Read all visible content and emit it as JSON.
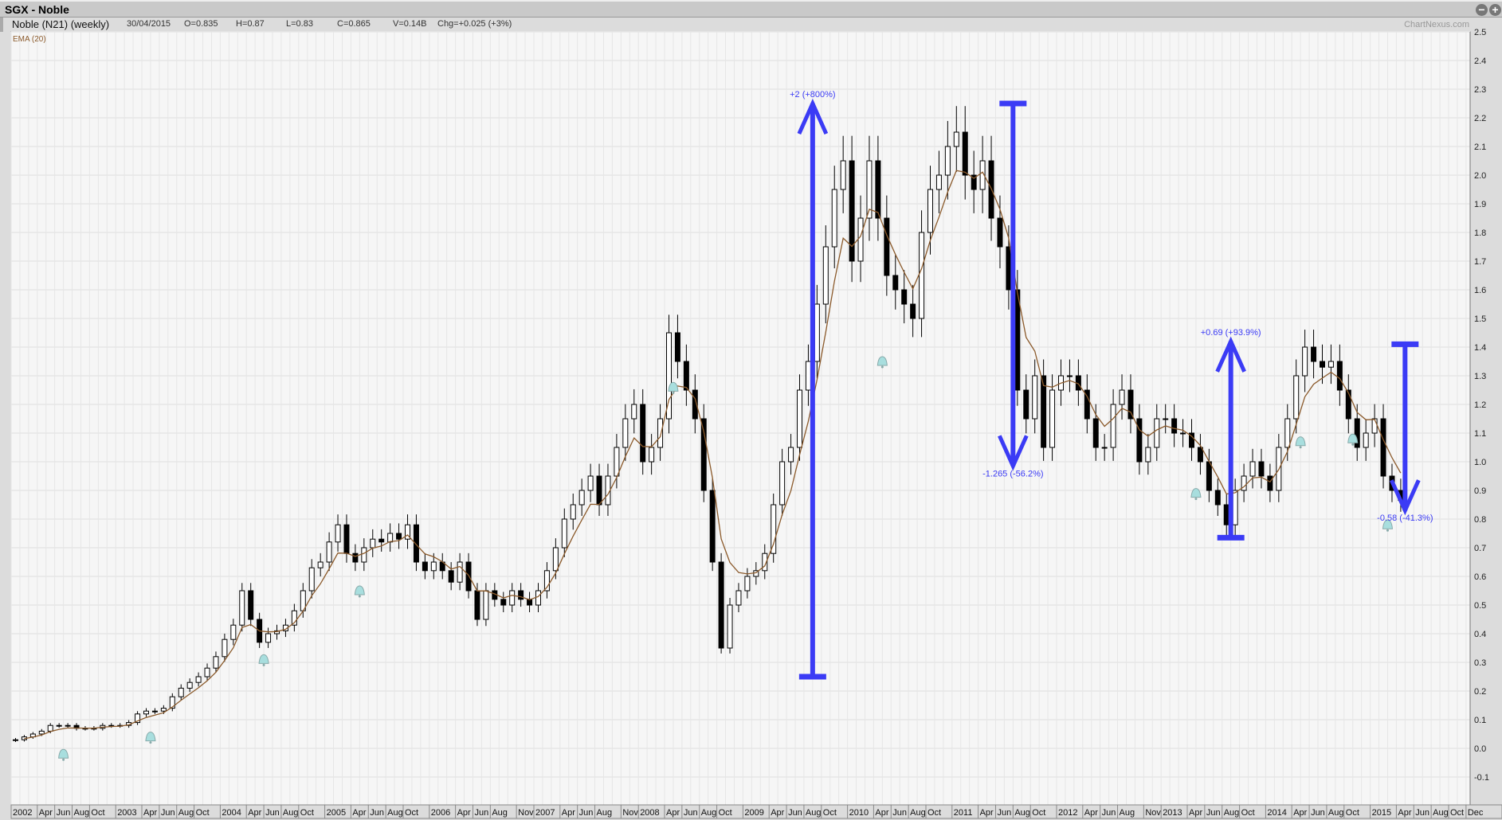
{
  "window": {
    "title": "SGX - Noble",
    "icons": [
      "zoom-out-icon",
      "zoom-in-icon",
      "options-icon"
    ]
  },
  "info": {
    "name": "Noble (N21) (weekly)",
    "date": "30/04/2015",
    "open": "O=0.835",
    "high": "H=0.87",
    "low": "L=0.83",
    "close": "C=0.865",
    "volume": "V=0.14B",
    "change": "Chg=+0.025 (+3%)",
    "brand": "ChartNexus.com"
  },
  "chart_data": {
    "type": "candlestick",
    "indicator": {
      "label": "EMA (20)",
      "color": "#8b5a2b"
    },
    "colors": {
      "up_body": "#ffffff",
      "down_body": "#000000",
      "annotation": "#3b3bf5",
      "alert": "#a8dede",
      "grid": "#e6e6e6",
      "background": "#f6f6f6"
    },
    "ylim": [
      -0.1,
      2.5
    ],
    "yticks": [
      "2.5",
      "2.4",
      "2.3",
      "2.2",
      "2.1",
      "2.0",
      "1.9",
      "1.8",
      "1.7",
      "1.6",
      "1.5",
      "1.4",
      "1.3",
      "1.2",
      "1.1",
      "1.0",
      "0.9",
      "0.8",
      "0.7",
      "0.6",
      "0.5",
      "0.4",
      "0.3",
      "0.2",
      "0.1",
      "0.0",
      "-0.1"
    ],
    "grid": true,
    "start": "2002-01",
    "monthly_close": [
      0.03,
      0.04,
      0.05,
      0.06,
      0.08,
      0.08,
      0.08,
      0.07,
      0.07,
      0.07,
      0.08,
      0.08,
      0.08,
      0.09,
      0.12,
      0.13,
      0.13,
      0.14,
      0.18,
      0.21,
      0.23,
      0.25,
      0.28,
      0.32,
      0.38,
      0.43,
      0.55,
      0.45,
      0.37,
      0.4,
      0.41,
      0.43,
      0.48,
      0.55,
      0.63,
      0.65,
      0.72,
      0.78,
      0.68,
      0.65,
      0.7,
      0.73,
      0.72,
      0.75,
      0.73,
      0.78,
      0.65,
      0.62,
      0.65,
      0.62,
      0.58,
      0.65,
      0.55,
      0.45,
      0.55,
      0.52,
      0.5,
      0.55,
      0.52,
      0.5,
      0.55,
      0.62,
      0.7,
      0.8,
      0.85,
      0.9,
      0.95,
      0.85,
      0.95,
      1.05,
      1.15,
      1.2,
      1.0,
      1.05,
      1.15,
      1.45,
      1.35,
      1.25,
      1.15,
      0.9,
      0.65,
      0.35,
      0.5,
      0.55,
      0.6,
      0.62,
      0.68,
      0.85,
      1.0,
      1.05,
      1.25,
      1.35,
      1.55,
      1.75,
      1.95,
      2.05,
      1.7,
      1.85,
      2.05,
      1.85,
      1.65,
      1.6,
      1.55,
      1.5,
      1.8,
      1.95,
      2.0,
      2.1,
      2.15,
      2.0,
      1.95,
      2.05,
      1.85,
      1.75,
      1.6,
      1.25,
      1.15,
      1.3,
      1.05,
      1.25,
      1.3,
      1.3,
      1.25,
      1.15,
      1.05,
      1.05,
      1.2,
      1.25,
      1.15,
      1.0,
      1.05,
      1.15,
      1.15,
      1.1,
      1.1,
      1.05,
      1.0,
      0.9,
      0.85,
      0.78,
      0.9,
      0.95,
      1.0,
      0.95,
      0.9,
      1.05,
      1.15,
      1.3,
      1.4,
      1.35,
      1.33,
      1.35,
      1.25,
      1.15,
      1.05,
      1.1,
      1.15,
      0.95,
      0.9,
      0.865
    ],
    "xaxis_labels": [
      [
        "2002",
        "2002-01"
      ],
      [
        "Apr",
        "2002-04"
      ],
      [
        "Jun",
        "2002-06"
      ],
      [
        "Aug",
        "2002-08"
      ],
      [
        "Oct",
        "2002-10"
      ],
      [
        "2003",
        "2003-01"
      ],
      [
        "Apr",
        "2003-04"
      ],
      [
        "Jun",
        "2003-06"
      ],
      [
        "Aug",
        "2003-08"
      ],
      [
        "Oct",
        "2003-10"
      ],
      [
        "2004",
        "2004-01"
      ],
      [
        "Apr",
        "2004-04"
      ],
      [
        "Jun",
        "2004-06"
      ],
      [
        "Aug",
        "2004-08"
      ],
      [
        "Oct",
        "2004-10"
      ],
      [
        "2005",
        "2005-01"
      ],
      [
        "Apr",
        "2005-04"
      ],
      [
        "Jun",
        "2005-06"
      ],
      [
        "Aug",
        "2005-08"
      ],
      [
        "Oct",
        "2005-10"
      ],
      [
        "2006",
        "2006-01"
      ],
      [
        "Apr",
        "2006-04"
      ],
      [
        "Jun",
        "2006-06"
      ],
      [
        "Aug",
        "2006-08"
      ],
      [
        "Nov",
        "2006-11"
      ],
      [
        "2007",
        "2007-01"
      ],
      [
        "Apr",
        "2007-04"
      ],
      [
        "Jun",
        "2007-06"
      ],
      [
        "Aug",
        "2007-08"
      ],
      [
        "Nov",
        "2007-11"
      ],
      [
        "2008",
        "2008-01"
      ],
      [
        "Apr",
        "2008-04"
      ],
      [
        "Jun",
        "2008-06"
      ],
      [
        "Aug",
        "2008-08"
      ],
      [
        "Oct",
        "2008-10"
      ],
      [
        "2009",
        "2009-01"
      ],
      [
        "Apr",
        "2009-04"
      ],
      [
        "Jun",
        "2009-06"
      ],
      [
        "Aug",
        "2009-08"
      ],
      [
        "Oct",
        "2009-10"
      ],
      [
        "2010",
        "2010-01"
      ],
      [
        "Apr",
        "2010-04"
      ],
      [
        "Jun",
        "2010-06"
      ],
      [
        "Aug",
        "2010-08"
      ],
      [
        "Oct",
        "2010-10"
      ],
      [
        "2011",
        "2011-01"
      ],
      [
        "Apr",
        "2011-04"
      ],
      [
        "Jun",
        "2011-06"
      ],
      [
        "Aug",
        "2011-08"
      ],
      [
        "Oct",
        "2011-10"
      ],
      [
        "2012",
        "2012-01"
      ],
      [
        "Apr",
        "2012-04"
      ],
      [
        "Jun",
        "2012-06"
      ],
      [
        "Aug",
        "2012-08"
      ],
      [
        "Nov",
        "2012-11"
      ],
      [
        "2013",
        "2013-01"
      ],
      [
        "Apr",
        "2013-04"
      ],
      [
        "Jun",
        "2013-06"
      ],
      [
        "Aug",
        "2013-08"
      ],
      [
        "Oct",
        "2013-10"
      ],
      [
        "2014",
        "2014-01"
      ],
      [
        "Apr",
        "2014-04"
      ],
      [
        "Jun",
        "2014-06"
      ],
      [
        "Aug",
        "2014-08"
      ],
      [
        "Oct",
        "2014-10"
      ],
      [
        "2015",
        "2015-01"
      ],
      [
        "Apr",
        "2015-04"
      ],
      [
        "Jun",
        "2015-06"
      ],
      [
        "Aug",
        "2015-08"
      ],
      [
        "Oct",
        "2015-10"
      ],
      [
        "Dec",
        "2015-12"
      ]
    ],
    "annotations": [
      {
        "label": "+2 (+800%)",
        "date": "2009-09",
        "from": 0.25,
        "to": 2.25,
        "direction": "up"
      },
      {
        "label": "-1.265 (-56.2%)",
        "date": "2011-08",
        "from": 2.25,
        "to": 0.985,
        "direction": "down"
      },
      {
        "label": "+0.69 (+93.9%)",
        "date": "2013-09",
        "from": 0.735,
        "to": 1.42,
        "direction": "up"
      },
      {
        "label": "-0.58 (-41.3%)",
        "date": "2015-05",
        "from": 1.41,
        "to": 0.83,
        "direction": "down"
      }
    ],
    "alerts": [
      {
        "date": "2002-07",
        "value": -0.02
      },
      {
        "date": "2003-05",
        "value": 0.04
      },
      {
        "date": "2004-06",
        "value": 0.31
      },
      {
        "date": "2005-05",
        "value": 0.55
      },
      {
        "date": "2008-05",
        "value": 1.26
      },
      {
        "date": "2010-05",
        "value": 1.35
      },
      {
        "date": "2013-05",
        "value": 0.89
      },
      {
        "date": "2014-05",
        "value": 1.07
      },
      {
        "date": "2014-11",
        "value": 1.08
      },
      {
        "date": "2015-03",
        "value": 0.78
      }
    ]
  }
}
